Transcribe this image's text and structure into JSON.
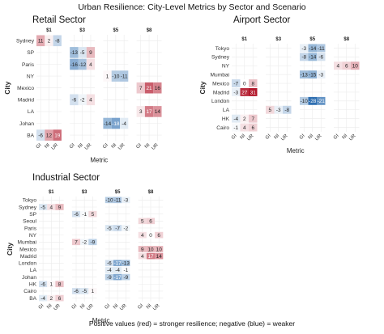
{
  "title": "Urban Resilience: City-Level Metrics by Sector and Scenario",
  "footnote": "Positive values (red) = stronger resilience; negative (blue) = weaker",
  "chart_data": [
    {
      "type": "heatmap",
      "title": "Retail Sector",
      "xlabel": "Metric",
      "ylabel": "City",
      "facets": [
        "$1",
        "$3",
        "$5",
        "$8"
      ],
      "metrics": [
        "GI",
        "NI",
        "UR"
      ],
      "cities": [
        "Sydney",
        "SP",
        "Paris",
        "NY",
        "Mexico",
        "Madrid",
        "LA",
        "Johan",
        "BA"
      ],
      "cells": [
        {
          "city": "Sydney",
          "facet": "$1",
          "metric": "GI",
          "value": 11
        },
        {
          "city": "Sydney",
          "facet": "$1",
          "metric": "NI",
          "value": 2
        },
        {
          "city": "Sydney",
          "facet": "$1",
          "metric": "UR",
          "value": -8
        },
        {
          "city": "BA",
          "facet": "$1",
          "metric": "GI",
          "value": -6
        },
        {
          "city": "BA",
          "facet": "$1",
          "metric": "NI",
          "value": 12
        },
        {
          "city": "BA",
          "facet": "$1",
          "metric": "UR",
          "value": 19
        },
        {
          "city": "SP",
          "facet": "$3",
          "metric": "GI",
          "value": -13
        },
        {
          "city": "SP",
          "facet": "$3",
          "metric": "NI",
          "value": -5
        },
        {
          "city": "SP",
          "facet": "$3",
          "metric": "UR",
          "value": 9
        },
        {
          "city": "Paris",
          "facet": "$3",
          "metric": "GI",
          "value": -16
        },
        {
          "city": "Paris",
          "facet": "$3",
          "metric": "NI",
          "value": -12
        },
        {
          "city": "Paris",
          "facet": "$3",
          "metric": "UR",
          "value": 4
        },
        {
          "city": "Madrid",
          "facet": "$3",
          "metric": "GI",
          "value": -6
        },
        {
          "city": "Madrid",
          "facet": "$3",
          "metric": "NI",
          "value": -2
        },
        {
          "city": "Madrid",
          "facet": "$3",
          "metric": "UR",
          "value": 4
        },
        {
          "city": "NY",
          "facet": "$5",
          "metric": "GI",
          "value": 1
        },
        {
          "city": "NY",
          "facet": "$5",
          "metric": "NI",
          "value": -10
        },
        {
          "city": "NY",
          "facet": "$5",
          "metric": "UR",
          "value": -11
        },
        {
          "city": "Johan",
          "facet": "$5",
          "metric": "GI",
          "value": -14
        },
        {
          "city": "Johan",
          "facet": "$5",
          "metric": "NI",
          "value": -18
        },
        {
          "city": "Johan",
          "facet": "$5",
          "metric": "UR",
          "value": -4
        },
        {
          "city": "Mexico",
          "facet": "$8",
          "metric": "GI",
          "value": 7
        },
        {
          "city": "Mexico",
          "facet": "$8",
          "metric": "NI",
          "value": 21
        },
        {
          "city": "Mexico",
          "facet": "$8",
          "metric": "UR",
          "value": 16
        },
        {
          "city": "LA",
          "facet": "$8",
          "metric": "GI",
          "value": 3
        },
        {
          "city": "LA",
          "facet": "$8",
          "metric": "NI",
          "value": 17
        },
        {
          "city": "LA",
          "facet": "$8",
          "metric": "UR",
          "value": 14
        }
      ]
    },
    {
      "type": "heatmap",
      "title": "Airport Sector",
      "xlabel": "Metric",
      "ylabel": "City",
      "facets": [
        "$1",
        "$3",
        "$5",
        "$8"
      ],
      "metrics": [
        "GI",
        "NI",
        "UR"
      ],
      "cities": [
        "Tokyo",
        "Sydney",
        "NY",
        "Mumbai",
        "Mexico",
        "Madrid",
        "London",
        "LA",
        "HK",
        "Cairo"
      ],
      "cells": [
        {
          "city": "Mexico",
          "facet": "$1",
          "metric": "GI",
          "value": -7
        },
        {
          "city": "Mexico",
          "facet": "$1",
          "metric": "NI",
          "value": 0
        },
        {
          "city": "Mexico",
          "facet": "$1",
          "metric": "UR",
          "value": 8
        },
        {
          "city": "Madrid",
          "facet": "$1",
          "metric": "GI",
          "value": -3
        },
        {
          "city": "Madrid",
          "facet": "$1",
          "metric": "NI",
          "value": 27
        },
        {
          "city": "Madrid",
          "facet": "$1",
          "metric": "UR",
          "value": 31
        },
        {
          "city": "HK",
          "facet": "$1",
          "metric": "GI",
          "value": -4
        },
        {
          "city": "HK",
          "facet": "$1",
          "metric": "NI",
          "value": 2
        },
        {
          "city": "HK",
          "facet": "$1",
          "metric": "UR",
          "value": 7
        },
        {
          "city": "Cairo",
          "facet": "$1",
          "metric": "GI",
          "value": -1
        },
        {
          "city": "Cairo",
          "facet": "$1",
          "metric": "NI",
          "value": 4
        },
        {
          "city": "Cairo",
          "facet": "$1",
          "metric": "UR",
          "value": 6
        },
        {
          "city": "LA",
          "facet": "$3",
          "metric": "GI",
          "value": 5
        },
        {
          "city": "LA",
          "facet": "$3",
          "metric": "NI",
          "value": -3
        },
        {
          "city": "LA",
          "facet": "$3",
          "metric": "UR",
          "value": -8
        },
        {
          "city": "Tokyo",
          "facet": "$5",
          "metric": "GI",
          "value": -3
        },
        {
          "city": "Tokyo",
          "facet": "$5",
          "metric": "NI",
          "value": -14
        },
        {
          "city": "Tokyo",
          "facet": "$5",
          "metric": "UR",
          "value": -11
        },
        {
          "city": "Sydney",
          "facet": "$5",
          "metric": "GI",
          "value": -8
        },
        {
          "city": "Sydney",
          "facet": "$5",
          "metric": "NI",
          "value": -14
        },
        {
          "city": "Sydney",
          "facet": "$5",
          "metric": "UR",
          "value": -6
        },
        {
          "city": "Mumbai",
          "facet": "$5",
          "metric": "GI",
          "value": -13
        },
        {
          "city": "Mumbai",
          "facet": "$5",
          "metric": "NI",
          "value": -15
        },
        {
          "city": "Mumbai",
          "facet": "$5",
          "metric": "UR",
          "value": -3
        },
        {
          "city": "London",
          "facet": "$5",
          "metric": "GI",
          "value": -10
        },
        {
          "city": "London",
          "facet": "$5",
          "metric": "NI",
          "value": -28
        },
        {
          "city": "London",
          "facet": "$5",
          "metric": "UR",
          "value": -21
        },
        {
          "city": "NY",
          "facet": "$8",
          "metric": "GI",
          "value": 4
        },
        {
          "city": "NY",
          "facet": "$8",
          "metric": "NI",
          "value": 6
        },
        {
          "city": "NY",
          "facet": "$8",
          "metric": "UR",
          "value": 10
        }
      ]
    },
    {
      "type": "heatmap",
      "title": "Industrial Sector",
      "xlabel": "Metric",
      "ylabel": "City",
      "facets": [
        "$1",
        "$3",
        "$5",
        "$8"
      ],
      "metrics": [
        "GI",
        "NI",
        "UR"
      ],
      "cities": [
        "Tokyo",
        "Sydney",
        "SP",
        "Seoul",
        "Paris",
        "NY",
        "Mumbai",
        "Mexico",
        "Madrid",
        "London",
        "LA",
        "Johan",
        "HK",
        "Cairo",
        "BA"
      ],
      "cells": [
        {
          "city": "Sydney",
          "facet": "$1",
          "metric": "GI",
          "value": -5
        },
        {
          "city": "Sydney",
          "facet": "$1",
          "metric": "NI",
          "value": 4
        },
        {
          "city": "Sydney",
          "facet": "$1",
          "metric": "UR",
          "value": 9
        },
        {
          "city": "HK",
          "facet": "$1",
          "metric": "GI",
          "value": -6
        },
        {
          "city": "HK",
          "facet": "$1",
          "metric": "NI",
          "value": 1
        },
        {
          "city": "HK",
          "facet": "$1",
          "metric": "UR",
          "value": 8
        },
        {
          "city": "BA",
          "facet": "$1",
          "metric": "GI",
          "value": -4
        },
        {
          "city": "BA",
          "facet": "$1",
          "metric": "NI",
          "value": 2
        },
        {
          "city": "BA",
          "facet": "$1",
          "metric": "UR",
          "value": 6
        },
        {
          "city": "SP",
          "facet": "$3",
          "metric": "GI",
          "value": -6
        },
        {
          "city": "SP",
          "facet": "$3",
          "metric": "NI",
          "value": -1
        },
        {
          "city": "SP",
          "facet": "$3",
          "metric": "UR",
          "value": 5
        },
        {
          "city": "Mumbai",
          "facet": "$3",
          "metric": "GI",
          "value": 7
        },
        {
          "city": "Mumbai",
          "facet": "$3",
          "metric": "NI",
          "value": -2
        },
        {
          "city": "Mumbai",
          "facet": "$3",
          "metric": "UR",
          "value": -9
        },
        {
          "city": "Cairo",
          "facet": "$3",
          "metric": "GI",
          "value": -6
        },
        {
          "city": "Cairo",
          "facet": "$3",
          "metric": "NI",
          "value": -5
        },
        {
          "city": "Cairo",
          "facet": "$3",
          "metric": "UR",
          "value": 1
        },
        {
          "city": "Tokyo",
          "facet": "$5",
          "metric": "GI",
          "value": -10
        },
        {
          "city": "Tokyo",
          "facet": "$5",
          "metric": "NI",
          "value": -11
        },
        {
          "city": "Tokyo",
          "facet": "$5",
          "metric": "UR",
          "value": -3
        },
        {
          "city": "Paris",
          "facet": "$5",
          "metric": "GI",
          "value": -5
        },
        {
          "city": "Paris",
          "facet": "$5",
          "metric": "NI",
          "value": -7
        },
        {
          "city": "Paris",
          "facet": "$5",
          "metric": "UR",
          "value": -2
        },
        {
          "city": "London",
          "facet": "$5",
          "metric": "GI",
          "value": -6
        },
        {
          "city": "London",
          "facet": "$5",
          "metric": "NI",
          "value": -17
        },
        {
          "city": "London",
          "facet": "$5",
          "metric": "UR",
          "value": -13
        },
        {
          "city": "LA",
          "facet": "$5",
          "metric": "GI",
          "value": -4
        },
        {
          "city": "LA",
          "facet": "$5",
          "metric": "NI",
          "value": -4
        },
        {
          "city": "LA",
          "facet": "$5",
          "metric": "UR",
          "value": -1
        },
        {
          "city": "Johan",
          "facet": "$5",
          "metric": "GI",
          "value": -9
        },
        {
          "city": "Johan",
          "facet": "$5",
          "metric": "NI",
          "value": -17
        },
        {
          "city": "Johan",
          "facet": "$5",
          "metric": "UR",
          "value": -9
        },
        {
          "city": "Seoul",
          "facet": "$8",
          "metric": "GI",
          "value": 5
        },
        {
          "city": "Seoul",
          "facet": "$8",
          "metric": "NI",
          "value": 6
        },
        {
          "city": "NY",
          "facet": "$8",
          "metric": "GI",
          "value": 4
        },
        {
          "city": "NY",
          "facet": "$8",
          "metric": "NI",
          "value": 0
        },
        {
          "city": "NY",
          "facet": "$8",
          "metric": "UR",
          "value": 6
        },
        {
          "city": "Mexico",
          "facet": "$8",
          "metric": "GI",
          "value": 9
        },
        {
          "city": "Mexico",
          "facet": "$8",
          "metric": "NI",
          "value": 10
        },
        {
          "city": "Mexico",
          "facet": "$8",
          "metric": "UR",
          "value": 10
        },
        {
          "city": "Madrid",
          "facet": "$8",
          "metric": "GI",
          "value": 4
        },
        {
          "city": "Madrid",
          "facet": "$8",
          "metric": "NI",
          "value": 17
        },
        {
          "city": "Madrid",
          "facet": "$8",
          "metric": "UR",
          "value": 14
        }
      ]
    }
  ],
  "colors": {
    "positive": "#b2182b",
    "negative": "#2166ac",
    "neutral": "#ffffff"
  }
}
